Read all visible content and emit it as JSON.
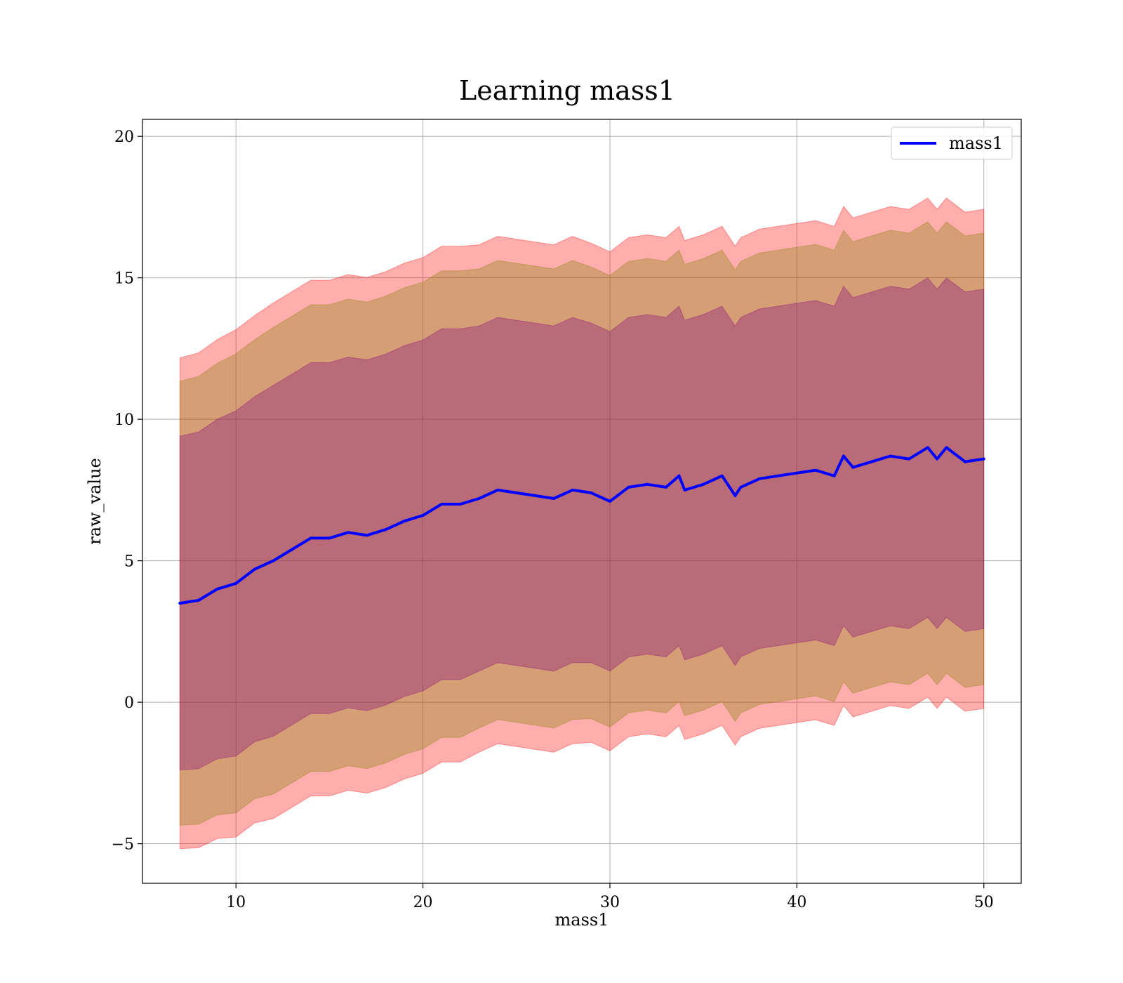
{
  "chart_data": {
    "type": "area",
    "title": "Learning mass1",
    "xlabel": "mass1",
    "ylabel": "raw_value",
    "xlim": [
      5,
      52
    ],
    "ylim": [
      -6.4,
      20.6
    ],
    "xticks": [
      10,
      20,
      30,
      40,
      50
    ],
    "yticks": [
      -5,
      0,
      5,
      10,
      15,
      20
    ],
    "xtick_labels": [
      "10",
      "20",
      "30",
      "40",
      "50"
    ],
    "ytick_labels": [
      "−5",
      "0",
      "5",
      "10",
      "15",
      "20"
    ],
    "grid": true,
    "legend": {
      "position": "top-right",
      "entries": [
        "mass1"
      ]
    },
    "colors": {
      "line": "#0000ff",
      "band_outer": "#ff0000",
      "band_middle": "#808000",
      "band_inner": "#800080"
    },
    "series": [
      {
        "name": "mass1",
        "x": [
          7.0,
          8.0,
          9.0,
          10.0,
          11.0,
          12.0,
          13.0,
          14.0,
          15.0,
          16.0,
          17.0,
          18.0,
          19.0,
          20.0,
          21.0,
          22.0,
          23.0,
          24.0,
          25.0,
          26.0,
          27.0,
          28.0,
          29.0,
          30.0,
          31.0,
          32.0,
          33.0,
          33.7,
          34.0,
          35.0,
          36.0,
          36.7,
          37.0,
          38.0,
          39.0,
          40.0,
          41.0,
          42.0,
          42.5,
          43.0,
          44.0,
          45.0,
          46.0,
          47.0,
          47.5,
          48.0,
          49.0,
          50.0
        ],
        "y": [
          3.5,
          3.6,
          4.0,
          4.2,
          4.7,
          5.0,
          5.4,
          5.8,
          5.8,
          6.0,
          5.9,
          6.1,
          6.4,
          6.6,
          7.0,
          7.0,
          7.2,
          7.5,
          7.4,
          7.3,
          7.2,
          7.5,
          7.4,
          7.1,
          7.6,
          7.7,
          7.6,
          8.0,
          7.5,
          7.7,
          8.0,
          7.3,
          7.6,
          7.9,
          8.0,
          8.1,
          8.2,
          8.0,
          8.7,
          8.3,
          8.5,
          8.7,
          8.6,
          9.0,
          8.6,
          9.0,
          8.5,
          8.6
        ],
        "std": [
          5.9,
          5.95,
          6.0,
          6.1,
          6.1,
          6.2,
          6.2,
          6.2,
          6.2,
          6.2,
          6.2,
          6.2,
          6.2,
          6.2,
          6.2,
          6.2,
          6.1,
          6.1,
          6.1,
          6.1,
          6.1,
          6.1,
          6.0,
          6.0,
          6.0,
          6.0,
          6.0,
          6.0,
          6.0,
          6.0,
          6.0,
          6.0,
          6.0,
          6.0,
          6.0,
          6.0,
          6.0,
          6.0,
          6.0,
          6.0,
          6.0,
          6.0,
          6.0,
          6.0,
          6.0,
          6.0,
          6.0,
          6.0
        ],
        "band_multipliers": [
          1.0,
          1.33,
          1.47
        ]
      }
    ]
  }
}
